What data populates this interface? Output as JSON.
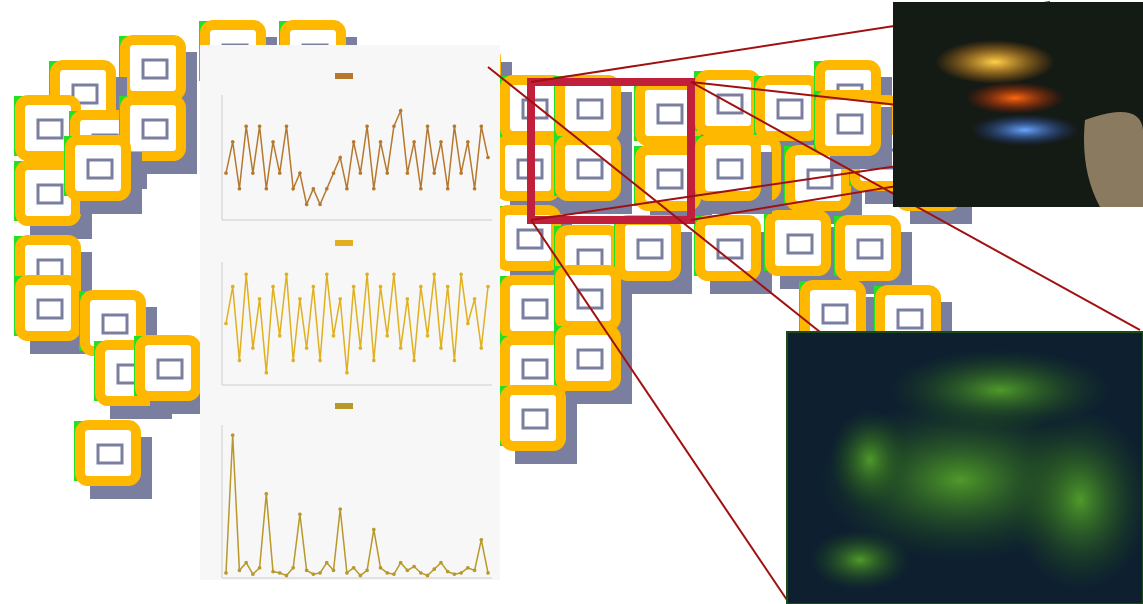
{
  "chart_data": [
    {
      "type": "line",
      "color": "#b5782e",
      "ylim": [
        0,
        8
      ],
      "values": [
        3,
        5,
        2,
        6,
        3,
        6,
        2,
        5,
        3,
        6,
        2,
        3,
        1,
        2,
        1,
        2,
        3,
        4,
        2,
        5,
        3,
        6,
        2,
        5,
        3,
        6,
        7,
        3,
        5,
        2,
        6,
        3,
        5,
        2,
        6,
        3,
        5,
        2,
        6,
        4
      ]
    },
    {
      "type": "line",
      "color": "#e0b020",
      "ylim": [
        0,
        10
      ],
      "values": [
        5,
        8,
        2,
        9,
        3,
        7,
        1,
        8,
        4,
        9,
        2,
        7,
        3,
        8,
        2,
        9,
        4,
        7,
        1,
        8,
        3,
        9,
        2,
        8,
        4,
        9,
        3,
        7,
        2,
        8,
        4,
        9,
        3,
        8,
        2,
        9,
        5,
        7,
        3,
        8
      ]
    },
    {
      "type": "line",
      "color": "#b8982a",
      "ylim": [
        0,
        600
      ],
      "values": [
        20,
        560,
        30,
        60,
        15,
        40,
        330,
        25,
        20,
        10,
        40,
        250,
        30,
        15,
        20,
        60,
        30,
        270,
        20,
        40,
        10,
        30,
        190,
        40,
        20,
        15,
        60,
        30,
        45,
        20,
        10,
        35,
        60,
        25,
        15,
        20,
        40,
        30,
        150,
        20
      ]
    }
  ]
}
